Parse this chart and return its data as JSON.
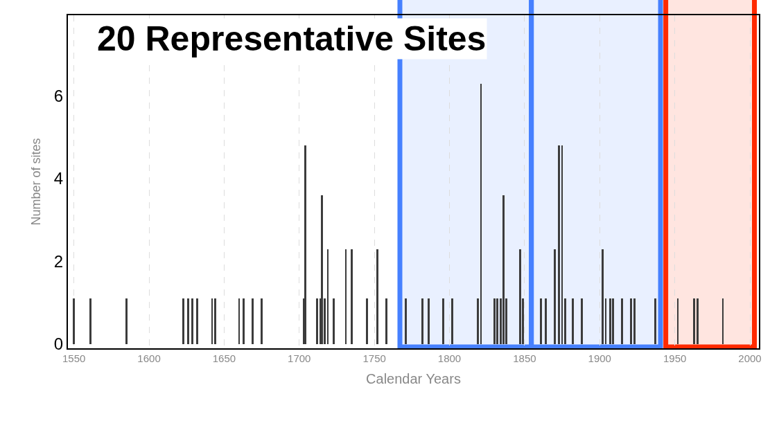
{
  "chart_data": {
    "type": "bar",
    "title": "20 Representative Sites",
    "xlabel": "Calendar Years",
    "ylabel": "Number of sites",
    "x": [
      1550,
      1561,
      1585,
      1623,
      1626,
      1629,
      1632,
      1642,
      1644,
      1660,
      1663,
      1669,
      1675,
      1703,
      1704,
      1712,
      1714,
      1715,
      1717,
      1719,
      1723,
      1731,
      1735,
      1745,
      1752,
      1758,
      1771,
      1782,
      1786,
      1796,
      1802,
      1819,
      1821,
      1830,
      1832,
      1834,
      1836,
      1838,
      1847,
      1849,
      1861,
      1864,
      1870,
      1873,
      1875,
      1877,
      1882,
      1888,
      1902,
      1904,
      1907,
      1909,
      1915,
      1921,
      1923,
      1937,
      1952,
      1963,
      1965,
      1982
    ],
    "values": [
      1.1,
      1.1,
      1.1,
      1.1,
      1.1,
      1.1,
      1.1,
      1.1,
      1.1,
      1.1,
      1.1,
      1.1,
      1.1,
      1.1,
      4.8,
      1.1,
      1.1,
      3.6,
      1.1,
      2.3,
      1.1,
      2.3,
      2.3,
      1.1,
      2.3,
      1.1,
      1.1,
      1.1,
      1.1,
      1.1,
      1.1,
      1.1,
      6.3,
      1.1,
      1.1,
      1.1,
      3.6,
      1.1,
      2.3,
      1.1,
      1.1,
      1.1,
      2.3,
      4.8,
      4.8,
      1.1,
      1.1,
      1.1,
      2.3,
      1.1,
      1.1,
      1.1,
      1.1,
      1.1,
      1.1,
      1.1,
      1.1,
      1.1,
      1.1,
      1.1
    ],
    "color": "#3c3c3c",
    "xlim": [
      1546,
      2006
    ],
    "xticks": [
      1550,
      1600,
      1650,
      1700,
      1750,
      1800,
      1850,
      1900,
      1950,
      2000
    ],
    "ylim": [
      -0.1,
      7.95
    ],
    "yticks": [
      0,
      2,
      4,
      6
    ],
    "grid": "x",
    "bands": [
      {
        "axis": "x",
        "from": 1767,
        "to": 1854.5,
        "color": "#4680ff"
      },
      {
        "axis": "x",
        "from": 1854.5,
        "to": 1940.5,
        "color": "#4680ff"
      },
      {
        "axis": "x",
        "from": 1944,
        "to": 2003,
        "color": "#ff2a00"
      }
    ]
  }
}
